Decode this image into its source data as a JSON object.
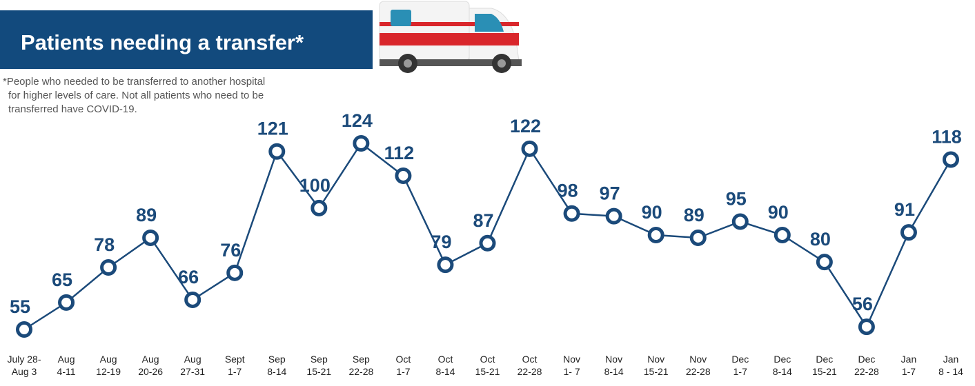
{
  "chart_data": {
    "type": "line",
    "title": "Patients needing a transfer*",
    "subtitle": [
      "*People who needed to be transferred to another hospital",
      "for higher levels of care. Not all patients who need to be",
      "transferred have COVID-19."
    ],
    "categories": [
      [
        "July 28-",
        "Aug 3"
      ],
      [
        "Aug",
        "4-11"
      ],
      [
        "Aug",
        "12-19"
      ],
      [
        "Aug",
        "20-26"
      ],
      [
        "Aug",
        "27-31"
      ],
      [
        "Sept",
        "1-7"
      ],
      [
        "Sep",
        "8-14"
      ],
      [
        "Sep",
        "15-21"
      ],
      [
        "Sep",
        "22-28"
      ],
      [
        "Oct",
        "1-7"
      ],
      [
        "Oct",
        "8-14"
      ],
      [
        "Oct",
        "15-21"
      ],
      [
        "Oct",
        "22-28"
      ],
      [
        "Nov",
        "1- 7"
      ],
      [
        "Nov",
        "8-14"
      ],
      [
        "Nov",
        "15-21"
      ],
      [
        "Nov",
        "22-28"
      ],
      [
        "Dec",
        "1-7"
      ],
      [
        "Dec",
        "8-14"
      ],
      [
        "Dec",
        "15-21"
      ],
      [
        "Dec",
        "22-28"
      ],
      [
        "Jan",
        "1-7"
      ],
      [
        "Jan",
        "8 - 14"
      ]
    ],
    "values": [
      55,
      65,
      78,
      89,
      66,
      76,
      121,
      100,
      124,
      112,
      79,
      87,
      122,
      98,
      97,
      90,
      89,
      95,
      90,
      80,
      56,
      91,
      118
    ],
    "color": "#1b4a7a"
  }
}
